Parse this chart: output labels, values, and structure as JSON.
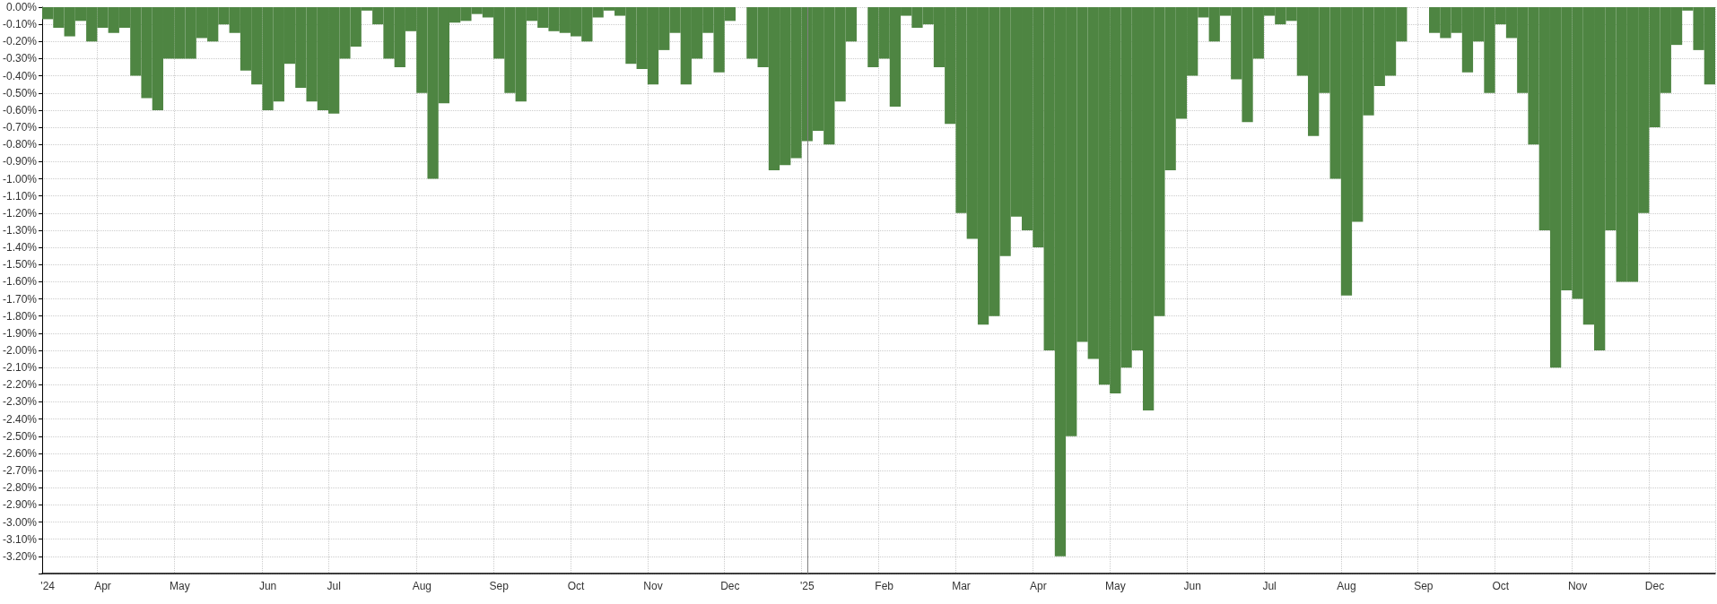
{
  "chart_data": {
    "type": "bar",
    "color": "#4e8542",
    "categories": [
      "'24",
      null,
      null,
      null,
      null,
      "Apr",
      null,
      null,
      null,
      null,
      null,
      null,
      "May",
      null,
      null,
      null,
      null,
      null,
      null,
      null,
      "Jun",
      null,
      null,
      null,
      null,
      null,
      "Jul",
      null,
      null,
      null,
      null,
      null,
      null,
      null,
      "Aug",
      null,
      null,
      null,
      null,
      null,
      null,
      "Sep",
      null,
      null,
      null,
      null,
      null,
      null,
      "Oct",
      null,
      null,
      null,
      null,
      null,
      null,
      "Nov",
      null,
      null,
      null,
      null,
      null,
      null,
      "Dec",
      null,
      null,
      null,
      null,
      null,
      null,
      "'25",
      null,
      null,
      null,
      null,
      null,
      null,
      "Feb",
      null,
      null,
      null,
      null,
      null,
      null,
      "Mar",
      null,
      null,
      null,
      null,
      null,
      null,
      "Apr",
      null,
      null,
      null,
      null,
      null,
      null,
      "May",
      null,
      null,
      null,
      null,
      null,
      null,
      "Jun",
      null,
      null,
      null,
      null,
      null,
      null,
      "Jul",
      null,
      null,
      null,
      null,
      null,
      null,
      "Aug",
      null,
      null,
      null,
      null,
      null,
      null,
      "Sep",
      null,
      null,
      null,
      null,
      null,
      null,
      "Oct",
      null,
      null,
      null,
      null,
      null,
      null,
      "Nov",
      null,
      null,
      null,
      null,
      null,
      null,
      "Dec",
      null,
      null,
      null,
      null,
      null
    ],
    "values": [
      -0.07,
      -0.12,
      -0.17,
      -0.08,
      -0.2,
      -0.12,
      -0.15,
      -0.12,
      -0.4,
      -0.53,
      -0.6,
      -0.3,
      -0.3,
      -0.3,
      -0.18,
      -0.2,
      -0.1,
      -0.15,
      -0.37,
      -0.45,
      -0.6,
      -0.55,
      -0.33,
      -0.47,
      -0.55,
      -0.6,
      -0.62,
      -0.3,
      -0.23,
      -0.02,
      -0.1,
      -0.3,
      -0.35,
      -0.14,
      -0.5,
      -1.0,
      -0.56,
      -0.09,
      -0.08,
      -0.04,
      -0.06,
      -0.3,
      -0.5,
      -0.55,
      -0.08,
      -0.12,
      -0.14,
      -0.15,
      -0.17,
      -0.2,
      -0.06,
      -0.02,
      -0.05,
      -0.33,
      -0.36,
      -0.45,
      -0.25,
      -0.15,
      -0.45,
      -0.3,
      -0.15,
      -0.38,
      -0.08,
      0,
      -0.3,
      -0.35,
      -0.95,
      -0.92,
      -0.88,
      -0.78,
      -0.72,
      -0.8,
      -0.55,
      -0.2,
      0,
      -0.35,
      -0.3,
      -0.58,
      -0.05,
      -0.12,
      -0.1,
      -0.35,
      -0.68,
      -1.2,
      -1.35,
      -1.85,
      -1.8,
      -1.45,
      -1.22,
      -1.3,
      -1.4,
      -2.0,
      -3.2,
      -2.5,
      -1.95,
      -2.05,
      -2.2,
      -2.25,
      -2.1,
      -2.0,
      -2.35,
      -1.8,
      -0.95,
      -0.65,
      -0.4,
      -0.06,
      -0.2,
      -0.05,
      -0.42,
      -0.67,
      -0.3,
      -0.05,
      -0.1,
      -0.08,
      -0.4,
      -0.75,
      -0.5,
      -1.0,
      -1.68,
      -1.25,
      -0.63,
      -0.46,
      -0.4,
      -0.2,
      0,
      0,
      -0.15,
      -0.18,
      -0.15,
      -0.38,
      -0.2,
      -0.5,
      -0.1,
      -0.18,
      -0.5,
      -0.8,
      -1.3,
      -2.1,
      -1.65,
      -1.7,
      -1.85,
      -2.0,
      -1.3,
      -1.6,
      -1.6,
      -1.2,
      -0.7,
      -0.5,
      -0.22,
      -0.02,
      -0.25,
      -0.45
    ],
    "ylim": [
      -3.3,
      0
    ],
    "yticks": [
      {
        "value": 0,
        "label": "0.00%"
      },
      {
        "value": -0.1,
        "label": "-0.10%"
      },
      {
        "value": -0.2,
        "label": "-0.20%"
      },
      {
        "value": -0.3,
        "label": "-0.30%"
      },
      {
        "value": -0.4,
        "label": "-0.40%"
      },
      {
        "value": -0.5,
        "label": "-0.50%"
      },
      {
        "value": -0.6,
        "label": "-0.60%"
      },
      {
        "value": -0.7,
        "label": "-0.70%"
      },
      {
        "value": -0.8,
        "label": "-0.80%"
      },
      {
        "value": -0.9,
        "label": "-0.90%"
      },
      {
        "value": -1.0,
        "label": "-1.00%"
      },
      {
        "value": -1.1,
        "label": "-1.10%"
      },
      {
        "value": -1.2,
        "label": "-1.20%"
      },
      {
        "value": -1.3,
        "label": "-1.30%"
      },
      {
        "value": -1.4,
        "label": "-1.40%"
      },
      {
        "value": -1.5,
        "label": "-1.50%"
      },
      {
        "value": -1.6,
        "label": "-1.60%"
      },
      {
        "value": -1.7,
        "label": "-1.70%"
      },
      {
        "value": -1.8,
        "label": "-1.80%"
      },
      {
        "value": -1.9,
        "label": "-1.90%"
      },
      {
        "value": -2.0,
        "label": "-2.00%"
      },
      {
        "value": -2.1,
        "label": "-2.10%"
      },
      {
        "value": -2.2,
        "label": "-2.20%"
      },
      {
        "value": -2.3,
        "label": "-2.30%"
      },
      {
        "value": -2.4,
        "label": "-2.40%"
      },
      {
        "value": -2.5,
        "label": "-2.50%"
      },
      {
        "value": -2.6,
        "label": "-2.60%"
      },
      {
        "value": -2.7,
        "label": "-2.70%"
      },
      {
        "value": -2.8,
        "label": "-2.80%"
      },
      {
        "value": -2.9,
        "label": "-2.90%"
      },
      {
        "value": -3.0,
        "label": "-3.00%"
      },
      {
        "value": -3.1,
        "label": "-3.10%"
      },
      {
        "value": -3.2,
        "label": "-3.20%"
      },
      {
        "value": -3.3,
        "label": null
      }
    ],
    "ref_lines": [
      {
        "axis": "x",
        "value": "'25",
        "color": "#808080"
      }
    ],
    "grid": true
  }
}
